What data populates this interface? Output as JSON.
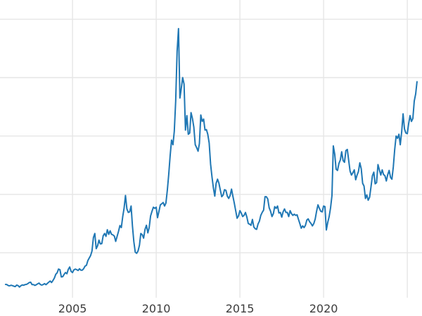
{
  "chart_data": {
    "type": "line",
    "title": "",
    "xlabel": "",
    "ylabel": "",
    "grid": true,
    "legend": false,
    "x_tick_labels": [
      "2005",
      "2010",
      "2015",
      "2020"
    ],
    "x_tick_years": [
      2005,
      2010,
      2015,
      2020
    ],
    "x_gridline_years": [
      2005,
      2010,
      2015,
      2020,
      2025
    ],
    "y_gridline_values": [
      10,
      20,
      30,
      40,
      50
    ],
    "xlim": [
      2000.67,
      2025.88
    ],
    "ylim": [
      0,
      53
    ],
    "line_color": "#1f77b4",
    "grid_color": "#e6e6e6",
    "tick_label_color": "#3c3c3c",
    "background": "#ffffff",
    "series": [
      {
        "name": "price",
        "start_year": 2001,
        "start_month": 1,
        "frequency": "monthly",
        "values": [
          4.57,
          4.53,
          4.37,
          4.33,
          4.43,
          4.36,
          4.26,
          4.2,
          4.45,
          4.37,
          4.12,
          4.34,
          4.48,
          4.43,
          4.53,
          4.57,
          4.7,
          4.9,
          4.95,
          4.55,
          4.55,
          4.4,
          4.5,
          4.67,
          4.8,
          4.55,
          4.45,
          4.55,
          4.7,
          4.52,
          4.75,
          4.95,
          5.15,
          4.9,
          5.25,
          5.65,
          6.3,
          6.55,
          7.2,
          7.1,
          5.85,
          5.9,
          6.3,
          6.6,
          6.4,
          7.15,
          7.55,
          6.8,
          6.6,
          7.05,
          7.2,
          7.1,
          6.95,
          7.25,
          7.0,
          7.0,
          7.25,
          7.7,
          7.85,
          8.65,
          9.1,
          9.5,
          10.3,
          12.6,
          13.3,
          10.7,
          11.2,
          12.15,
          11.5,
          11.55,
          12.9,
          13.3,
          12.8,
          13.95,
          13.15,
          13.75,
          13.15,
          13.05,
          12.85,
          11.95,
          12.8,
          13.65,
          14.65,
          14.3,
          16.2,
          17.6,
          19.8,
          17.5,
          16.9,
          17.0,
          18.0,
          14.6,
          11.9,
          10.1,
          9.9,
          10.3,
          11.3,
          13.3,
          13.1,
          12.5,
          14.0,
          14.7,
          13.4,
          14.3,
          16.3,
          17.1,
          17.8,
          17.6,
          17.8,
          16.0,
          17.1,
          18.2,
          18.4,
          18.6,
          18.0,
          18.5,
          20.7,
          23.4,
          26.6,
          29.3,
          28.5,
          30.8,
          36.0,
          44.5,
          48.4,
          36.5,
          38.2,
          40.0,
          38.9,
          31.0,
          33.5,
          30.3,
          30.5,
          34.0,
          33.0,
          31.5,
          28.5,
          28.0,
          27.4,
          28.7,
          33.6,
          32.5,
          32.9,
          31.0,
          31.1,
          30.3,
          28.8,
          25.2,
          23.0,
          21.1,
          19.7,
          21.9,
          22.6,
          21.9,
          20.7,
          19.6,
          19.9,
          20.8,
          20.7,
          19.7,
          19.3,
          19.8,
          20.9,
          19.7,
          18.5,
          17.2,
          15.9,
          16.3,
          17.2,
          16.8,
          16.2,
          16.4,
          16.9,
          16.1,
          15.0,
          14.9,
          14.7,
          15.7,
          14.4,
          14.1,
          14.0,
          14.9,
          15.4,
          16.4,
          16.9,
          17.3,
          19.6,
          19.6,
          19.2,
          17.7,
          17.1,
          16.2,
          16.7,
          17.9,
          17.6,
          18.0,
          16.8,
          16.9,
          16.1,
          17.0,
          17.5,
          16.9,
          16.9,
          16.2,
          17.2,
          16.7,
          16.4,
          16.6,
          16.4,
          16.5,
          15.7,
          15.0,
          14.2,
          14.6,
          14.3,
          14.7,
          15.6,
          15.8,
          15.3,
          15.0,
          14.6,
          15.0,
          15.8,
          17.1,
          18.2,
          17.6,
          17.1,
          17.0,
          18.0,
          17.9,
          13.9,
          15.2,
          16.2,
          17.7,
          19.8,
          28.3,
          26.9,
          24.3,
          24.1,
          25.3,
          25.9,
          27.3,
          25.8,
          25.5,
          27.5,
          27.7,
          25.8,
          24.0,
          23.3,
          23.7,
          24.2,
          22.5,
          23.3,
          23.9,
          25.4,
          24.4,
          21.9,
          21.4,
          19.3,
          19.9,
          19.0,
          19.5,
          21.3,
          23.2,
          23.8,
          21.8,
          22.0,
          25.1,
          24.2,
          23.3,
          24.2,
          23.4,
          23.2,
          22.3,
          23.4,
          24.1,
          22.9,
          22.6,
          24.7,
          27.7,
          30.0,
          29.6,
          30.3,
          28.5,
          30.7,
          33.8,
          31.2,
          30.5,
          30.4,
          32.1,
          33.5,
          32.5,
          33.0,
          36.0,
          37.2,
          39.3
        ]
      }
    ]
  }
}
